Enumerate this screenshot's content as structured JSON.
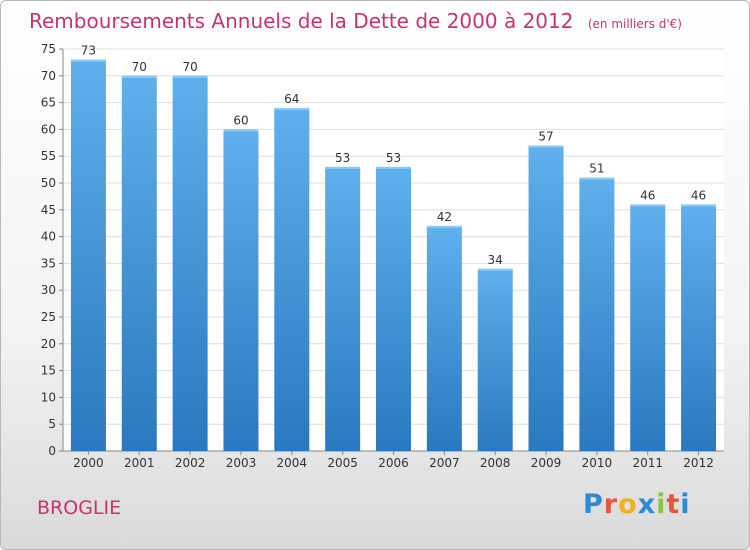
{
  "header": {
    "title": "Remboursements Annuels de la Dette de 2000 à 2012",
    "unit": "(en milliers d'€)"
  },
  "footer": {
    "commune": "BROGLIE",
    "logo_letters": [
      "P",
      "r",
      "o",
      "x",
      "i",
      "t",
      "i"
    ],
    "logo_colors": [
      "#2a8ad6",
      "#e8543f",
      "#f2b01e",
      "#2a8ad6",
      "#8cc63f",
      "#e8543f",
      "#2a8ad6"
    ]
  },
  "chart_data": {
    "type": "bar",
    "title": "Remboursements Annuels de la Dette de 2000 à 2012",
    "categories": [
      "2000",
      "2001",
      "2002",
      "2003",
      "2004",
      "2005",
      "2006",
      "2007",
      "2008",
      "2009",
      "2010",
      "2011",
      "2012"
    ],
    "values": [
      73,
      70,
      70,
      60,
      64,
      53,
      53,
      42,
      34,
      57,
      51,
      46,
      46
    ],
    "ylim": [
      0,
      75
    ],
    "yticks": [
      0,
      5,
      10,
      15,
      20,
      25,
      30,
      35,
      40,
      45,
      50,
      55,
      60,
      65,
      70,
      75
    ],
    "grid": true,
    "bar_color": "#3d95dc",
    "title_color": "#c8326e"
  }
}
